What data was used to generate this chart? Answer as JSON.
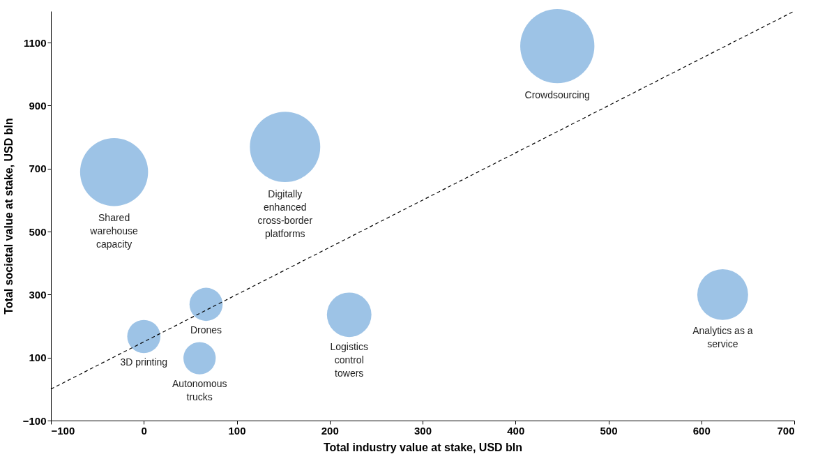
{
  "chart_data": {
    "type": "bubble",
    "xlabel": "Total industry value at stake, USD bln",
    "ylabel": "Total societal value at stake, USD bln",
    "xlim": [
      -100,
      700
    ],
    "xticks": [
      -100,
      0,
      100,
      200,
      300,
      400,
      500,
      600,
      700
    ],
    "ylim": [
      -100,
      1200
    ],
    "yticks": [
      -100,
      100,
      300,
      500,
      700,
      900,
      1100
    ],
    "grid": false,
    "series": [
      {
        "name": "Shared\nwarehouse\ncapacity",
        "color": "#9dc3e6",
        "x": [
          -32
        ],
        "values": [
          689
        ],
        "sizes": [
          0.84
        ]
      },
      {
        "name": "Digitally\nenhanced\ncross-border\nplatforms",
        "color": "#9dc3e6",
        "x": [
          152
        ],
        "values": [
          769
        ],
        "sizes": [
          0.9
        ]
      },
      {
        "name": "Crowdsourcing",
        "color": "#9dc3e6",
        "x": [
          445
        ],
        "values": [
          1089
        ],
        "sizes": [
          1
        ]
      },
      {
        "name": "Analytics as a\nservice",
        "color": "#9dc3e6",
        "x": [
          623
        ],
        "values": [
          300
        ],
        "sizes": [
          0.47
        ]
      },
      {
        "name": "Logistics\ncontrol\ntowers",
        "color": "#9dc3e6",
        "x": [
          221
        ],
        "values": [
          236
        ],
        "sizes": [
          0.36
        ]
      },
      {
        "name": "Drones",
        "color": "#9dc3e6",
        "x": [
          67
        ],
        "values": [
          269
        ],
        "sizes": [
          0.2
        ]
      },
      {
        "name": "3D printing",
        "color": "#9dc3e6",
        "x": [
          0
        ],
        "values": [
          167
        ],
        "sizes": [
          0.2
        ]
      },
      {
        "name": "Autonomous\ntrucks",
        "color": "#9dc3e6",
        "x": [
          60
        ],
        "values": [
          98
        ],
        "sizes": [
          0.19
        ]
      },
      {
        "type": "line",
        "color": "#000000",
        "line_style": "dashed",
        "x": [
          -100,
          700
        ],
        "values": [
          0,
          1200
        ]
      }
    ]
  }
}
